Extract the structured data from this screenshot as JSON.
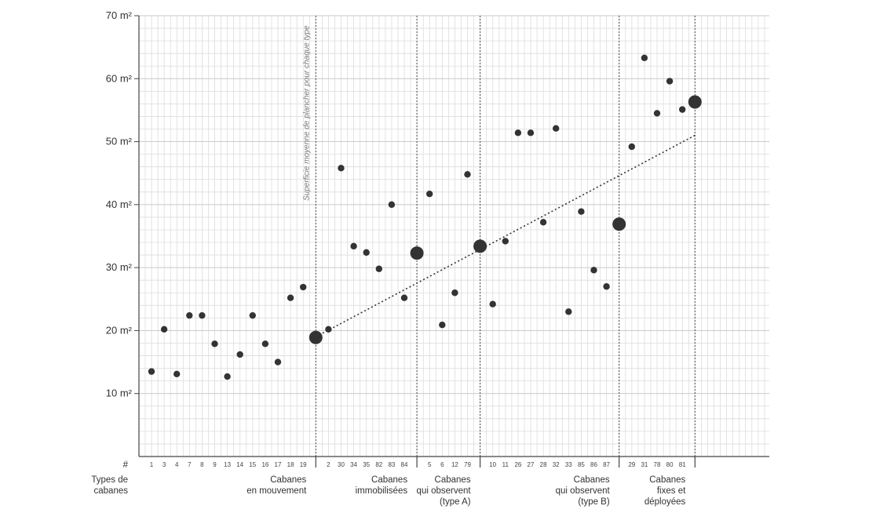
{
  "chart_data": {
    "type": "scatter",
    "ylim": [
      0,
      70
    ],
    "yticks": [
      {
        "value": 10,
        "label": "10 m²"
      },
      {
        "value": 20,
        "label": "20 m²"
      },
      {
        "value": 30,
        "label": "30 m²"
      },
      {
        "value": 40,
        "label": "40 m²"
      },
      {
        "value": 50,
        "label": "50 m²"
      },
      {
        "value": 60,
        "label": "60 m²"
      },
      {
        "value": 70,
        "label": "70 m²"
      }
    ],
    "xaxis_symbol": "#",
    "xaxis_name": "Types de cabanes",
    "vertical_note": "Superficie moyenne de plancher pour chaque type",
    "points": [
      {
        "label": "1",
        "y": 13.5
      },
      {
        "label": "3",
        "y": 20.2
      },
      {
        "label": "4",
        "y": 13.1
      },
      {
        "label": "7",
        "y": 22.4
      },
      {
        "label": "8",
        "y": 22.4
      },
      {
        "label": "9",
        "y": 17.9
      },
      {
        "label": "13",
        "y": 12.7
      },
      {
        "label": "14",
        "y": 16.2
      },
      {
        "label": "15",
        "y": 22.4
      },
      {
        "label": "16",
        "y": 17.9
      },
      {
        "label": "17",
        "y": 15.0
      },
      {
        "label": "18",
        "y": 25.2
      },
      {
        "label": "19",
        "y": 26.9
      },
      {
        "label": "",
        "y": 18.9,
        "mean": true
      },
      {
        "label": "2",
        "y": 20.2
      },
      {
        "label": "30",
        "y": 45.8
      },
      {
        "label": "34",
        "y": 33.4
      },
      {
        "label": "35",
        "y": 32.4
      },
      {
        "label": "82",
        "y": 29.8
      },
      {
        "label": "83",
        "y": 40.0
      },
      {
        "label": "84",
        "y": 25.2
      },
      {
        "label": "",
        "y": 32.3,
        "mean": true
      },
      {
        "label": "5",
        "y": 41.7
      },
      {
        "label": "6",
        "y": 20.9
      },
      {
        "label": "12",
        "y": 26.0
      },
      {
        "label": "79",
        "y": 44.8
      },
      {
        "label": "",
        "y": 33.4,
        "mean": true
      },
      {
        "label": "10",
        "y": 24.2
      },
      {
        "label": "11",
        "y": 34.2
      },
      {
        "label": "26",
        "y": 51.4
      },
      {
        "label": "27",
        "y": 51.4
      },
      {
        "label": "28",
        "y": 37.2
      },
      {
        "label": "32",
        "y": 52.1
      },
      {
        "label": "33",
        "y": 23.0
      },
      {
        "label": "85",
        "y": 38.9
      },
      {
        "label": "86",
        "y": 29.6
      },
      {
        "label": "87",
        "y": 27.0
      },
      {
        "label": "",
        "y": 36.9,
        "mean": true
      },
      {
        "label": "29",
        "y": 49.2
      },
      {
        "label": "31",
        "y": 63.3
      },
      {
        "label": "78",
        "y": 54.5
      },
      {
        "label": "80",
        "y": 59.6
      },
      {
        "label": "81",
        "y": 55.1
      },
      {
        "label": "",
        "y": 56.3,
        "mean": true
      }
    ],
    "groups": [
      {
        "name": [
          "Cabanes",
          "en mouvement"
        ],
        "divider_index": 13
      },
      {
        "name": [
          "Cabanes",
          "immobilisées"
        ],
        "divider_index": 21
      },
      {
        "name": [
          "Cabanes",
          "qui observent",
          "(type A)"
        ],
        "divider_index": 26
      },
      {
        "name": [
          "Cabanes",
          "qui observent",
          "(type B)"
        ],
        "divider_index": 37
      },
      {
        "name": [
          "Cabanes",
          "fixes et",
          "déployées"
        ],
        "divider_index": 43
      }
    ],
    "trend_line": {
      "from_index": 13,
      "to_index": 43,
      "from_y": 19.0,
      "to_y": 51.0
    },
    "grid": true
  }
}
